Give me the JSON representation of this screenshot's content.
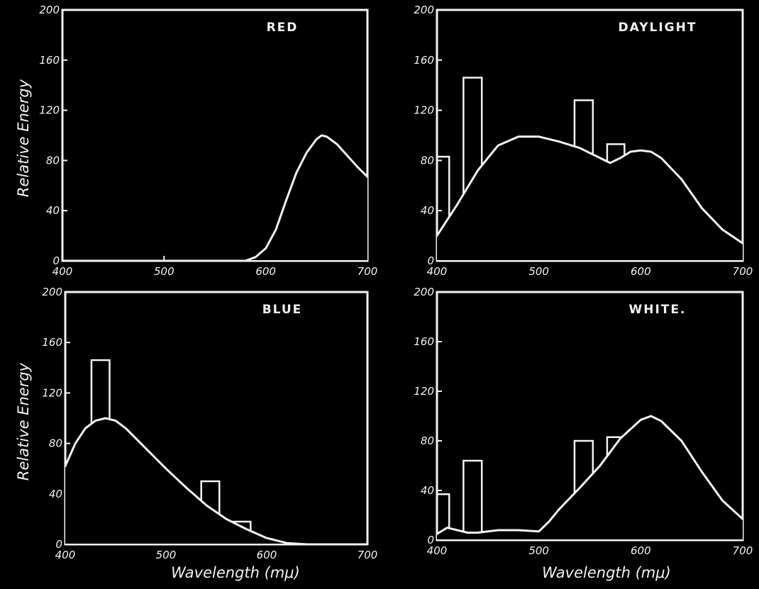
{
  "labels": {
    "ylabel": "Relative Energy",
    "xlabel": "Wavelength (mμ)"
  },
  "chart_data": [
    {
      "type": "line",
      "title": "RED",
      "xlim": [
        400,
        700
      ],
      "ylim": [
        0,
        200
      ],
      "xticks": [
        "400",
        "500",
        "600",
        "700"
      ],
      "yticks": [
        "0",
        "40",
        "80",
        "120",
        "160",
        "200"
      ],
      "series": [
        {
          "x": [
            400,
            580,
            590,
            600,
            610,
            620,
            630,
            640,
            650,
            655,
            660,
            670,
            680,
            690,
            700
          ],
          "y": [
            0,
            0,
            3,
            10,
            25,
            48,
            70,
            86,
            97,
            100,
            99,
            93,
            84,
            75,
            67
          ]
        }
      ],
      "bars": []
    },
    {
      "type": "line",
      "title": "DAYLIGHT",
      "xlim": [
        400,
        700
      ],
      "ylim": [
        0,
        200
      ],
      "xticks": [
        "400",
        "500",
        "600",
        "700"
      ],
      "yticks": [
        "0",
        "40",
        "80",
        "120",
        "160",
        "200"
      ],
      "series": [
        {
          "x": [
            400,
            420,
            440,
            460,
            480,
            500,
            520,
            540,
            560,
            570,
            580,
            590,
            600,
            610,
            620,
            640,
            660,
            680,
            700
          ],
          "y": [
            20,
            45,
            72,
            92,
            99,
            99,
            95,
            90,
            82,
            78,
            82,
            87,
            88,
            87,
            82,
            65,
            42,
            25,
            14
          ]
        }
      ],
      "bars": [
        {
          "x0": 400,
          "x1": 412,
          "y": 83
        },
        {
          "x0": 426,
          "x1": 444,
          "y": 146
        },
        {
          "x0": 535,
          "x1": 553,
          "y": 128
        },
        {
          "x0": 567,
          "x1": 584,
          "y": 93
        }
      ]
    },
    {
      "type": "line",
      "title": "BLUE",
      "xlim": [
        400,
        700
      ],
      "ylim": [
        0,
        200
      ],
      "xticks": [
        "400",
        "500",
        "600",
        "700"
      ],
      "yticks": [
        "0",
        "40",
        "80",
        "120",
        "160",
        "200"
      ],
      "series": [
        {
          "x": [
            400,
            410,
            420,
            430,
            440,
            450,
            460,
            480,
            500,
            520,
            540,
            560,
            580,
            600,
            620,
            640
          ],
          "y": [
            62,
            80,
            92,
            98,
            100,
            98,
            92,
            76,
            60,
            45,
            31,
            20,
            12,
            5,
            1,
            0
          ]
        }
      ],
      "bars": [
        {
          "x0": 426,
          "x1": 444,
          "y": 146
        },
        {
          "x0": 535,
          "x1": 553,
          "y": 50
        },
        {
          "x0": 567,
          "x1": 584,
          "y": 18
        }
      ]
    },
    {
      "type": "line",
      "title": "WHITE.",
      "xlim": [
        400,
        700
      ],
      "ylim": [
        0,
        200
      ],
      "xticks": [
        "400",
        "500",
        "600",
        "700"
      ],
      "yticks": [
        "0",
        "40",
        "80",
        "120",
        "160",
        "200"
      ],
      "series": [
        {
          "x": [
            400,
            410,
            420,
            430,
            440,
            460,
            480,
            500,
            510,
            520,
            540,
            560,
            580,
            600,
            610,
            620,
            640,
            660,
            680,
            700
          ],
          "y": [
            5,
            10,
            8,
            6,
            6,
            8,
            8,
            7,
            15,
            25,
            42,
            60,
            82,
            97,
            100,
            96,
            80,
            55,
            32,
            17
          ]
        }
      ],
      "bars": [
        {
          "x0": 400,
          "x1": 412,
          "y": 37
        },
        {
          "x0": 426,
          "x1": 444,
          "y": 64
        },
        {
          "x0": 535,
          "x1": 553,
          "y": 80
        },
        {
          "x0": 567,
          "x1": 584,
          "y": 83
        }
      ]
    }
  ]
}
